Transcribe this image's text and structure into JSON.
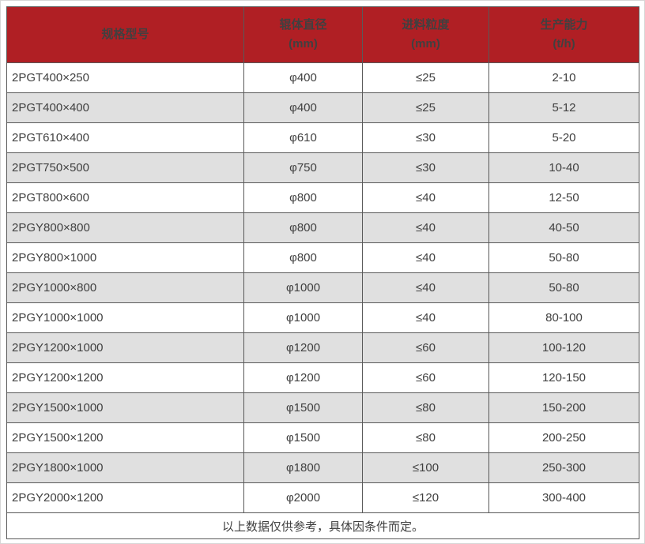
{
  "colors": {
    "header_bg": "#b01f24",
    "header_text": "#ffffff",
    "row_alt_bg": "#e0e0e0",
    "border": "#595959",
    "text": "#404040"
  },
  "table": {
    "headers": [
      {
        "line1": "规格型号",
        "line2": ""
      },
      {
        "line1": "辊体直径",
        "line2": "(mm)"
      },
      {
        "line1": "进料粒度",
        "line2": "(mm)"
      },
      {
        "line1": "生产能力",
        "line2": "(t/h)"
      }
    ],
    "rows": [
      [
        "2PGT400×250",
        "φ400",
        "≤25",
        "2-10"
      ],
      [
        "2PGT400×400",
        "φ400",
        "≤25",
        "5-12"
      ],
      [
        "2PGT610×400",
        "φ610",
        "≤30",
        "5-20"
      ],
      [
        "2PGT750×500",
        "φ750",
        "≤30",
        "10-40"
      ],
      [
        "2PGT800×600",
        "φ800",
        "≤40",
        "12-50"
      ],
      [
        "2PGY800×800",
        "φ800",
        "≤40",
        "40-50"
      ],
      [
        "2PGY800×1000",
        "φ800",
        "≤40",
        "50-80"
      ],
      [
        "2PGY1000×800",
        "φ1000",
        "≤40",
        "50-80"
      ],
      [
        "2PGY1000×1000",
        "φ1000",
        "≤40",
        "80-100"
      ],
      [
        "2PGY1200×1000",
        "φ1200",
        "≤60",
        "100-120"
      ],
      [
        "2PGY1200×1200",
        "φ1200",
        "≤60",
        "120-150"
      ],
      [
        "2PGY1500×1000",
        "φ1500",
        "≤80",
        "150-200"
      ],
      [
        "2PGY1500×1200",
        "φ1500",
        "≤80",
        "200-250"
      ],
      [
        "2PGY1800×1000",
        "φ1800",
        "≤100",
        "250-300"
      ],
      [
        "2PGY2000×1200",
        "φ2000",
        "≤120",
        "300-400"
      ]
    ],
    "footer": "以上数据仅供参考，具体因条件而定。"
  }
}
